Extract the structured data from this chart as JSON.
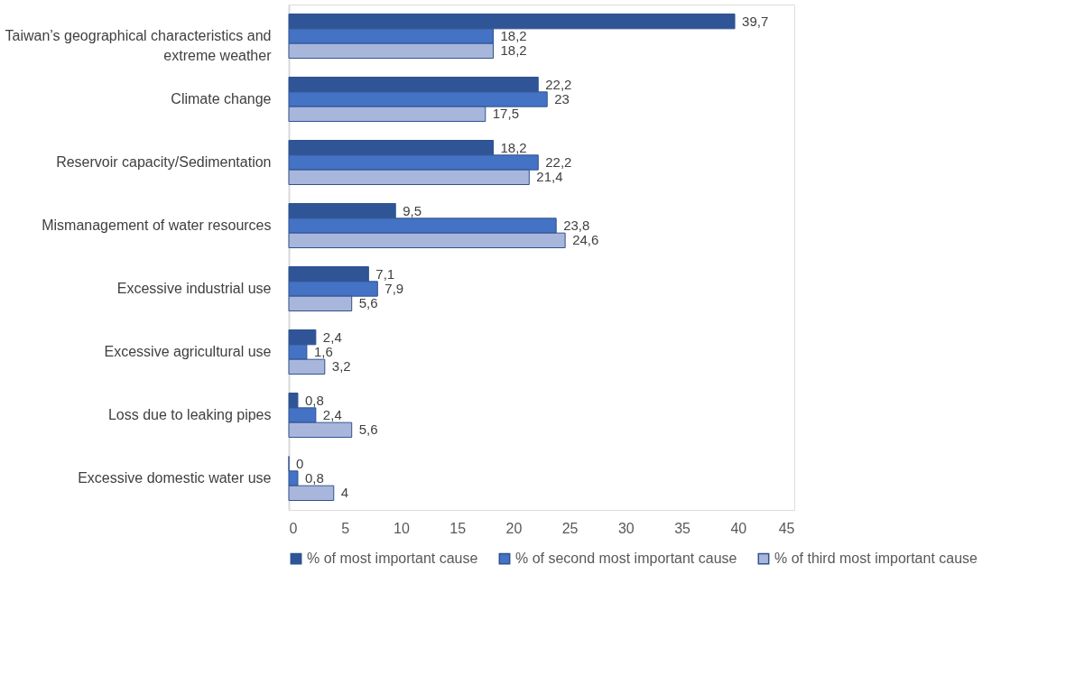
{
  "chart_data": {
    "type": "bar",
    "orientation": "horizontal",
    "categories": [
      "Taiwan’s geographical characteristics and extreme weather",
      "Climate change",
      "Reservoir capacity/Sedimentation",
      "Mismanagement of water resources",
      "Excessive industrial use",
      "Excessive agricultural use",
      "Loss due to leaking pipes",
      "Excessive domestic water use"
    ],
    "series": [
      {
        "name": "% of most important cause",
        "color": "#2f5597",
        "values": [
          39.7,
          22.2,
          18.2,
          9.5,
          7.1,
          2.4,
          0.8,
          0
        ],
        "value_labels": [
          "39,7",
          "22,2",
          "18,2",
          "9,5",
          "7,1",
          "2,4",
          "0,8",
          "0"
        ]
      },
      {
        "name": "% of second most important cause",
        "color": "#4472c4",
        "values": [
          18.2,
          23,
          22.2,
          23.8,
          7.9,
          1.6,
          2.4,
          0.8
        ],
        "value_labels": [
          "18,2",
          "23",
          "22,2",
          "23,8",
          "7,9",
          "1,6",
          "2,4",
          "0,8"
        ]
      },
      {
        "name": "% of third most important cause",
        "color": "#a9b6dc",
        "values": [
          18.2,
          17.5,
          21.4,
          24.6,
          5.6,
          3.2,
          5.6,
          4
        ],
        "value_labels": [
          "18,2",
          "17,5",
          "21,4",
          "24,6",
          "5,6",
          "3,2",
          "5,6",
          "4"
        ]
      }
    ],
    "xlim": [
      0,
      45
    ],
    "xticks": [
      0,
      5,
      10,
      15,
      20,
      25,
      30,
      35,
      40,
      45
    ],
    "grid": false,
    "legend": "bottom"
  }
}
